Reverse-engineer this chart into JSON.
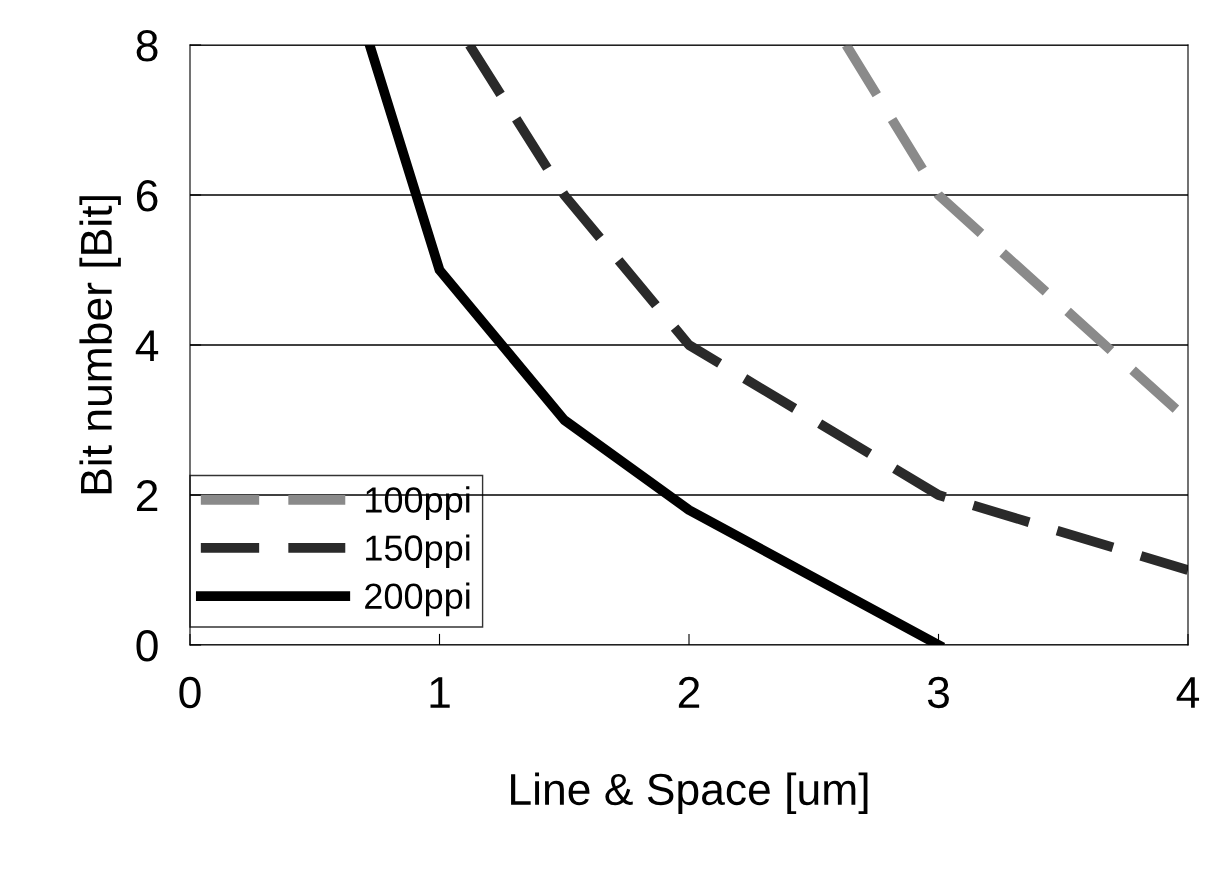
{
  "chart_data": {
    "type": "line",
    "xlabel": "Line & Space [um]",
    "ylabel": "Bit number [Bit]",
    "xlim": [
      0,
      4
    ],
    "xticks": [
      0,
      1,
      2,
      3,
      4
    ],
    "ylim": [
      0,
      8
    ],
    "yticks": [
      0,
      2,
      4,
      6,
      8
    ],
    "grid": "y",
    "legend": "bottom left",
    "marker": "none",
    "series": [
      {
        "name": "100ppi",
        "color": "#8a8a8a",
        "line_style": "dashed",
        "x": [
          2.63,
          3,
          4
        ],
        "values": [
          8,
          6,
          3
        ]
      },
      {
        "name": "150ppi",
        "color": "#2a2a2a",
        "line_style": "dashed",
        "x": [
          1.12,
          1.5,
          2,
          3,
          4
        ],
        "values": [
          8,
          6,
          4,
          2,
          1
        ]
      },
      {
        "name": "200ppi",
        "color": "#000000",
        "line_style": "solid",
        "x": [
          0.72,
          1,
          1.5,
          2,
          3
        ],
        "values": [
          8,
          5,
          3,
          1.8,
          0
        ]
      }
    ]
  }
}
